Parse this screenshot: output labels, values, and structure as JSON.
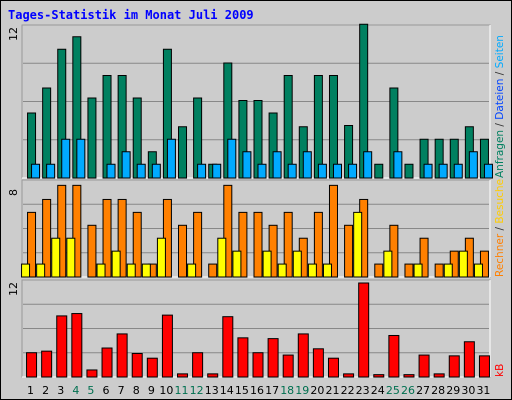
{
  "chart_data": [
    {
      "type": "bar",
      "title": "Tages-Statistik im Monat Juli 2009",
      "categories": [
        "1",
        "2",
        "3",
        "4",
        "5",
        "6",
        "7",
        "8",
        "9",
        "10",
        "11",
        "12",
        "13",
        "14",
        "15",
        "16",
        "17",
        "18",
        "19",
        "20",
        "21",
        "22",
        "23",
        "24",
        "25",
        "26",
        "27",
        "28",
        "29",
        "30",
        "31"
      ],
      "weekend_days": [
        "4",
        "5",
        "11",
        "12",
        "18",
        "19",
        "25",
        "26"
      ],
      "ylim": [
        0,
        12
      ],
      "ytick": "12",
      "series": [
        {
          "name": "Anfragen",
          "color": "#008060",
          "values": [
            5.2,
            7.2,
            10.3,
            11.3,
            6.4,
            8.2,
            8.2,
            6.4,
            2.1,
            10.3,
            4.1,
            6.4,
            1.1,
            9.2,
            6.2,
            6.2,
            5.2,
            8.2,
            4.1,
            8.2,
            8.2,
            4.2,
            12.3,
            1.1,
            7.2,
            1.1,
            3.1,
            3.1,
            3.1,
            4.1,
            3.1
          ]
        },
        {
          "name": "Dateien",
          "color": "#00aaff",
          "values": [
            1.1,
            1.1,
            3.1,
            3.1,
            0,
            1.1,
            2.1,
            1.1,
            1.1,
            3.1,
            0,
            1.1,
            1.1,
            3.1,
            2.1,
            1.1,
            2.1,
            1.1,
            2.1,
            1.1,
            1.1,
            1.1,
            2.1,
            0,
            2.1,
            0,
            1.1,
            1.1,
            1.1,
            2.1,
            1.1
          ]
        }
      ],
      "side_labels": [
        {
          "text": "Anfragen",
          "color": "#008060"
        },
        {
          "text": " / ",
          "color": "#333333"
        },
        {
          "text": "Dateien",
          "color": "#0044ff"
        },
        {
          "text": " / ",
          "color": "#333333"
        },
        {
          "text": "Seiten",
          "color": "#00aaff"
        }
      ]
    },
    {
      "type": "bar",
      "categories": [
        "1",
        "2",
        "3",
        "4",
        "5",
        "6",
        "7",
        "8",
        "9",
        "10",
        "11",
        "12",
        "13",
        "14",
        "15",
        "16",
        "17",
        "18",
        "19",
        "20",
        "21",
        "22",
        "23",
        "24",
        "25",
        "26",
        "27",
        "28",
        "29",
        "30",
        "31"
      ],
      "ylim": [
        0,
        8
      ],
      "ytick": "8",
      "series": [
        {
          "name": "Rechner",
          "color": "#ff8000",
          "values": [
            5.5,
            6.6,
            7.8,
            7.8,
            4.4,
            6.6,
            6.6,
            5.5,
            1.1,
            6.6,
            4.4,
            5.5,
            1.1,
            7.8,
            5.5,
            5.5,
            4.4,
            5.5,
            3.3,
            5.5,
            7.8,
            4.4,
            6.6,
            1.1,
            4.4,
            1.1,
            3.3,
            1.1,
            2.2,
            3.3,
            2.2
          ]
        },
        {
          "name": "Besuche",
          "color": "#ffff00",
          "values": [
            1.1,
            1.1,
            3.3,
            3.3,
            0,
            1.1,
            2.2,
            1.1,
            1.1,
            3.3,
            0,
            1.1,
            0,
            3.3,
            2.2,
            0,
            2.2,
            1.1,
            2.2,
            1.1,
            1.1,
            0,
            5.5,
            0,
            2.2,
            0,
            1.1,
            0,
            1.1,
            2.2,
            1.1
          ]
        }
      ],
      "side_labels": [
        {
          "text": "Rechner",
          "color": "#ff8000"
        },
        {
          "text": " / ",
          "color": "#333333"
        },
        {
          "text": "Besuche",
          "color": "#ffcc00"
        }
      ]
    },
    {
      "type": "bar",
      "categories": [
        "1",
        "2",
        "3",
        "4",
        "5",
        "6",
        "7",
        "8",
        "9",
        "10",
        "11",
        "12",
        "13",
        "14",
        "15",
        "16",
        "17",
        "18",
        "19",
        "20",
        "21",
        "22",
        "23",
        "24",
        "25",
        "26",
        "27",
        "28",
        "29",
        "30",
        "31"
      ],
      "ylim": [
        0,
        12
      ],
      "ytick": "12",
      "series": [
        {
          "name": "kB",
          "color": "#ff0000",
          "values": [
            3.1,
            3.3,
            7.8,
            8.1,
            0.9,
            3.7,
            5.5,
            3.0,
            2.4,
            7.9,
            0.4,
            3.1,
            0.4,
            7.7,
            5.0,
            3.1,
            4.9,
            2.8,
            5.5,
            3.6,
            2.4,
            0.4,
            12.0,
            0.3,
            5.3,
            0.3,
            2.8,
            0.4,
            2.7,
            4.5,
            2.7
          ]
        }
      ],
      "side_labels": [
        {
          "text": "kB",
          "color": "#ff0000"
        }
      ]
    }
  ]
}
